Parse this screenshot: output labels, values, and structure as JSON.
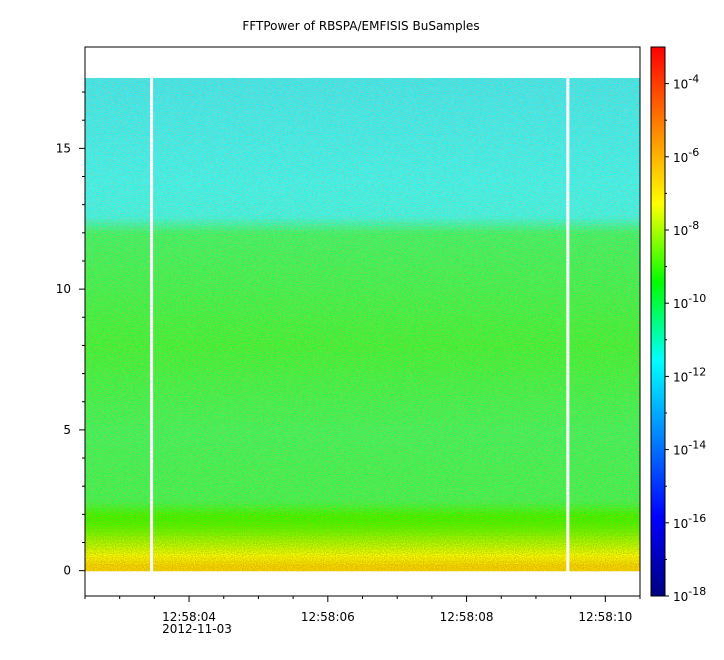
{
  "chart_data": {
    "type": "heatmap",
    "title": "FFTPower of RBSPA/EMFISIS  BuSamples",
    "xlabel": "",
    "ylabel": "",
    "x_tick_labels": [
      "12:58:04",
      "12:58:06",
      "12:58:08",
      "12:58:10"
    ],
    "x_tick_values_s": [
      4,
      6,
      8,
      10
    ],
    "x_date_label": "2012-11-03",
    "xlim_s": [
      2.5,
      10.5
    ],
    "y_tick_labels": [
      "0",
      "5",
      "10",
      "15"
    ],
    "y_tick_values": [
      0,
      5,
      10,
      15
    ],
    "ylim": [
      -0.9,
      18.6
    ],
    "data_y_range": [
      0,
      17.5
    ],
    "data_gaps_s": [
      3.46,
      9.46
    ],
    "colorbar": {
      "scale": "log",
      "range": [
        1e-18,
        0.001
      ],
      "tick_labels": [
        {
          "base": "10",
          "exp": "-4"
        },
        {
          "base": "10",
          "exp": "-6"
        },
        {
          "base": "10",
          "exp": "-8"
        },
        {
          "base": "10",
          "exp": "-10"
        },
        {
          "base": "10",
          "exp": "-12"
        },
        {
          "base": "10",
          "exp": "-14"
        },
        {
          "base": "10",
          "exp": "-16"
        },
        {
          "base": "10",
          "exp": "-18"
        }
      ],
      "tick_exponents": [
        -4,
        -6,
        -8,
        -10,
        -12,
        -14,
        -16,
        -18
      ],
      "colormap": [
        "#00007f",
        "#0000ff",
        "#0080ff",
        "#00ffff",
        "#00ff00",
        "#ffff00",
        "#ff8000",
        "#ff0000"
      ]
    },
    "power_profile": [
      {
        "y": 0.2,
        "log_power": -6.6
      },
      {
        "y": 0.6,
        "log_power": -7.4
      },
      {
        "y": 1.2,
        "log_power": -8.3
      },
      {
        "y": 1.8,
        "log_power": -9.3
      },
      {
        "y": 2.5,
        "log_power": -10.2
      },
      {
        "y": 5,
        "log_power": -10.3
      },
      {
        "y": 8,
        "log_power": -10.0
      },
      {
        "y": 12,
        "log_power": -10.4
      },
      {
        "y": 12.6,
        "log_power": -11.5
      },
      {
        "y": 17.5,
        "log_power": -11.8
      }
    ]
  }
}
